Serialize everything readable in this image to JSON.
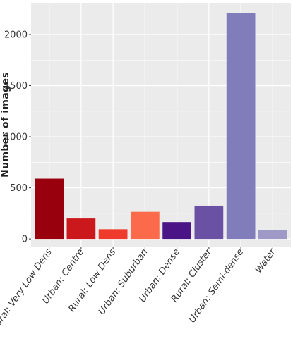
{
  "chart_data": {
    "type": "bar",
    "title": "",
    "xlabel": "",
    "ylabel": "Number of images",
    "categories": [
      "Rural: Very Low Dens",
      "Urban: Centre",
      "Rural: Low Dens",
      "Urban: Suburban",
      "Urban: Dense",
      "Rural: Cluster",
      "Urban: Semi-dense",
      "Water"
    ],
    "values": [
      590,
      200,
      95,
      265,
      165,
      325,
      2210,
      85
    ],
    "colors": [
      "#99000d",
      "#cb181d",
      "#ef3b2c",
      "#fb6a4a",
      "#4a1486",
      "#6a51a3",
      "#807dba",
      "#9e9ac8"
    ],
    "ylim": [
      -75,
      2310
    ],
    "yticks": [
      0,
      500,
      1000,
      1500,
      2000
    ],
    "grid": true,
    "panel_background": "#ebebeb",
    "grid_color": "#ffffff",
    "legend": "none"
  }
}
